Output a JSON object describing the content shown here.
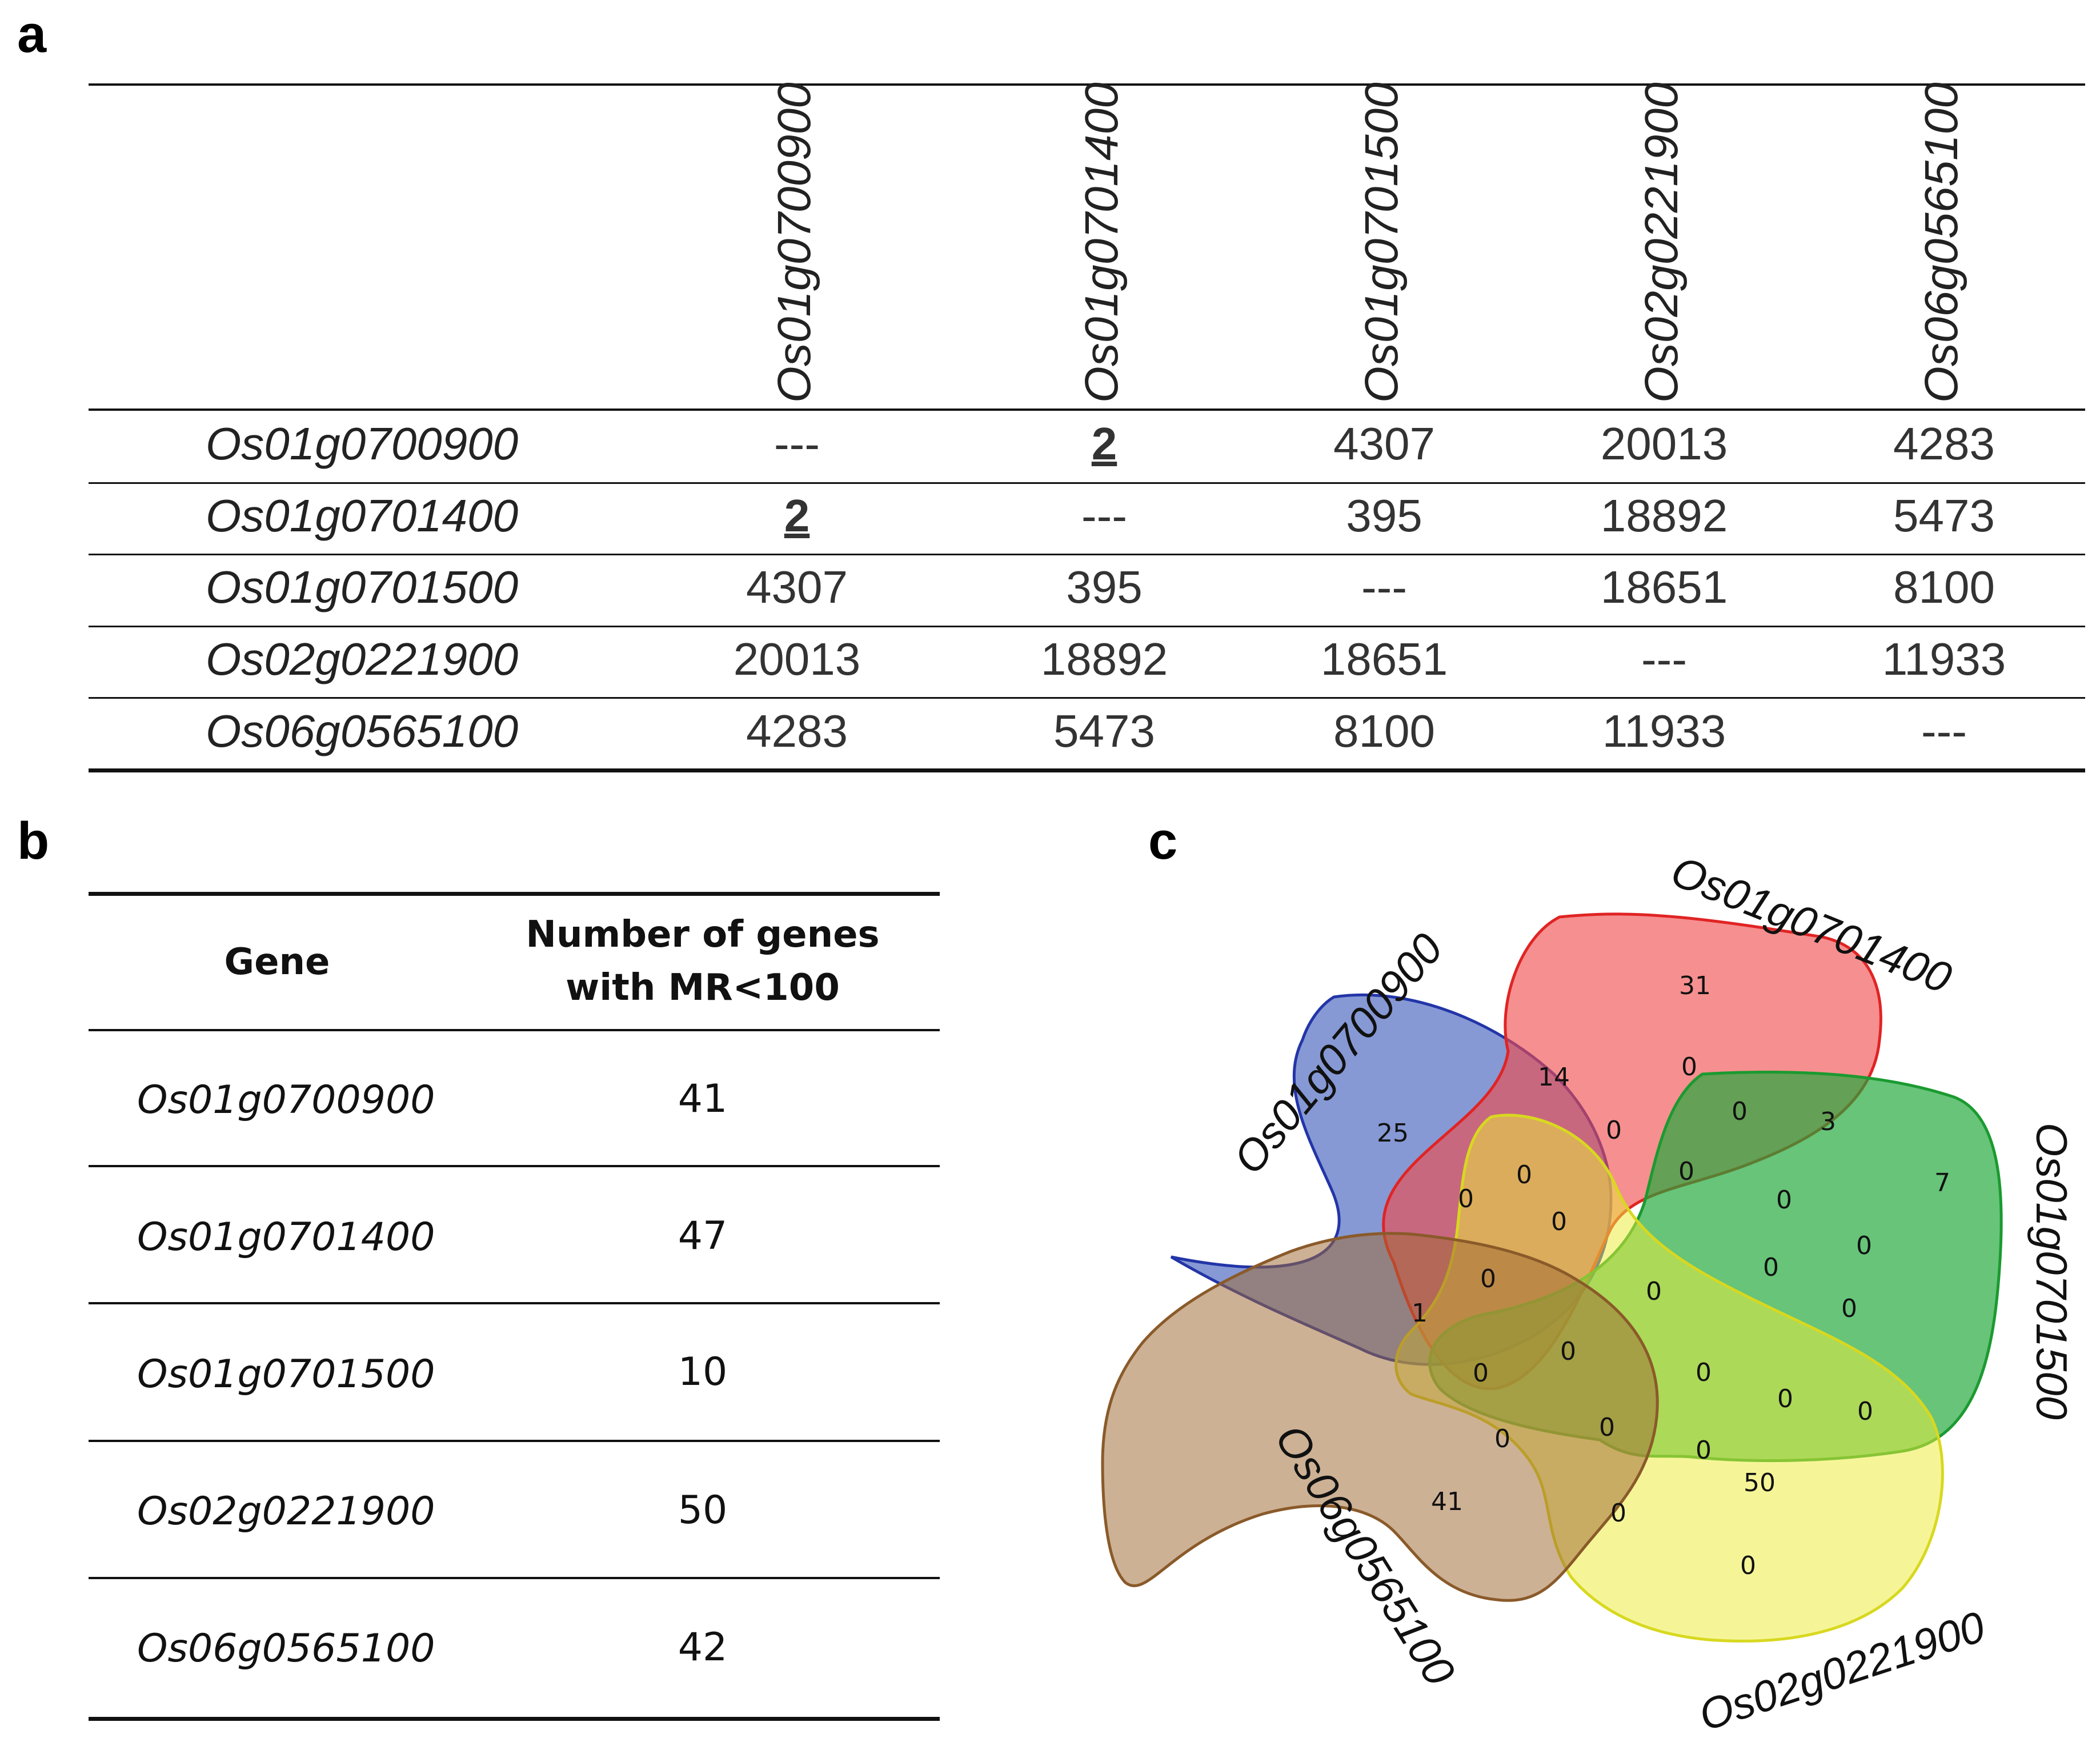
{
  "panel_a": {
    "label": "a",
    "genes": [
      "Os01g0700900",
      "Os01g0701400",
      "Os01g0701500",
      "Os02g0221900",
      "Os06g0565100"
    ],
    "rows": [
      {
        "gene": "Os01g0700900",
        "values": [
          "---",
          "2",
          "4307",
          "20013",
          "4283"
        ]
      },
      {
        "gene": "Os01g0701400",
        "values": [
          "2",
          "---",
          "395",
          "18892",
          "5473"
        ]
      },
      {
        "gene": "Os01g0701500",
        "values": [
          "4307",
          "395",
          "---",
          "18651",
          "8100"
        ]
      },
      {
        "gene": "Os02g0221900",
        "values": [
          "20013",
          "18892",
          "18651",
          "---",
          "11933"
        ]
      },
      {
        "gene": "Os06g0565100",
        "values": [
          "4283",
          "5473",
          "8100",
          "11933",
          "---"
        ]
      }
    ],
    "highlighted_value": "2"
  },
  "panel_b": {
    "label": "b",
    "header_gene": "Gene",
    "header_count_line1": "Number of genes",
    "header_count_line2": "with MR<100",
    "rows": [
      {
        "gene": "Os01g0700900",
        "count": "41"
      },
      {
        "gene": "Os01g0701400",
        "count": "47"
      },
      {
        "gene": "Os01g0701500",
        "count": "10"
      },
      {
        "gene": "Os02g0221900",
        "count": "50"
      },
      {
        "gene": "Os06g0565100",
        "count": "42"
      }
    ]
  },
  "panel_c": {
    "label": "c",
    "sets": [
      {
        "name": "Os01g0700900",
        "color": "#2f4fb5"
      },
      {
        "name": "Os01g0701400",
        "color": "#f04a4a"
      },
      {
        "name": "Os01g0701500",
        "color": "#1fa83a"
      },
      {
        "name": "Os02g0221900",
        "color": "#ecec3a"
      },
      {
        "name": "Os06g0565100",
        "color": "#a06a34"
      }
    ],
    "region_counts": [
      "25",
      "14",
      "31",
      "0",
      "0",
      "3",
      "7",
      "0",
      "0",
      "0",
      "0",
      "0",
      "0",
      "0",
      "1",
      "0",
      "0",
      "0",
      "0",
      "0",
      "0",
      "0",
      "0",
      "0",
      "0",
      "0",
      "0",
      "41",
      "0",
      "50",
      "0"
    ]
  }
}
